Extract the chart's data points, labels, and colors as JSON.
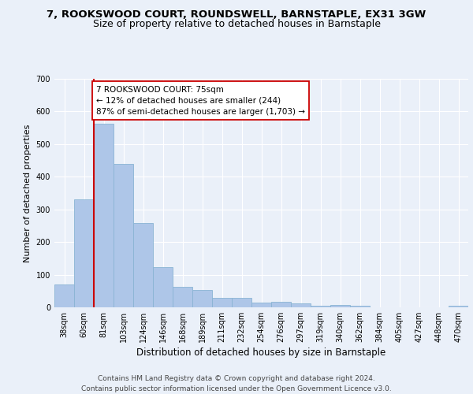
{
  "title1": "7, ROOKSWOOD COURT, ROUNDSWELL, BARNSTAPLE, EX31 3GW",
  "title2": "Size of property relative to detached houses in Barnstaple",
  "xlabel": "Distribution of detached houses by size in Barnstaple",
  "ylabel": "Number of detached properties",
  "bar_color": "#aec6e8",
  "bar_edge_color": "#8ab4d4",
  "categories": [
    "38sqm",
    "60sqm",
    "81sqm",
    "103sqm",
    "124sqm",
    "146sqm",
    "168sqm",
    "189sqm",
    "211sqm",
    "232sqm",
    "254sqm",
    "276sqm",
    "297sqm",
    "319sqm",
    "340sqm",
    "362sqm",
    "384sqm",
    "405sqm",
    "427sqm",
    "448sqm",
    "470sqm"
  ],
  "values": [
    70,
    330,
    563,
    440,
    258,
    122,
    63,
    53,
    28,
    28,
    15,
    16,
    12,
    5,
    8,
    5,
    0,
    0,
    0,
    0,
    6
  ],
  "vline_color": "#cc0000",
  "annotation_text": "7 ROOKSWOOD COURT: 75sqm\n← 12% of detached houses are smaller (244)\n87% of semi-detached houses are larger (1,703) →",
  "annotation_box_color": "#ffffff",
  "annotation_box_edge": "#cc0000",
  "ylim": [
    0,
    700
  ],
  "yticks": [
    0,
    100,
    200,
    300,
    400,
    500,
    600,
    700
  ],
  "footer": "Contains HM Land Registry data © Crown copyright and database right 2024.\nContains public sector information licensed under the Open Government Licence v3.0.",
  "background_color": "#eaf0f9",
  "grid_color": "#ffffff",
  "title1_fontsize": 9.5,
  "title2_fontsize": 9,
  "xlabel_fontsize": 8.5,
  "ylabel_fontsize": 8,
  "tick_fontsize": 7,
  "annotation_fontsize": 7.5,
  "footer_fontsize": 6.5
}
